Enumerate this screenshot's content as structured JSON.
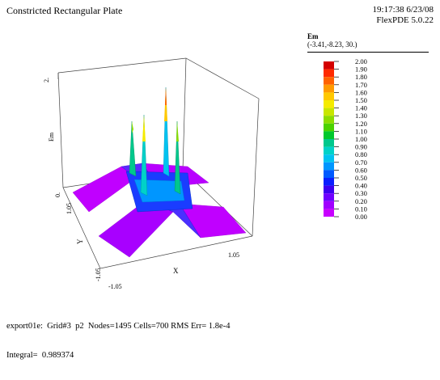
{
  "title": "Constricted Rectangular Plate",
  "timestamp": "19:17:38 6/23/08",
  "version": "FlexPDE 5.0.22",
  "legend": {
    "variable": "Em",
    "viewpoint": "(-3.41,-8.23, 30.)",
    "entries": [
      {
        "value": "2.00",
        "color": "#d40000"
      },
      {
        "value": "1.90",
        "color": "#ff2a00"
      },
      {
        "value": "1.80",
        "color": "#ff6200"
      },
      {
        "value": "1.70",
        "color": "#ff9a00"
      },
      {
        "value": "1.60",
        "color": "#ffc800"
      },
      {
        "value": "1.50",
        "color": "#f5eb00"
      },
      {
        "value": "1.40",
        "color": "#c8e600"
      },
      {
        "value": "1.30",
        "color": "#8cdc00"
      },
      {
        "value": "1.20",
        "color": "#4bd200"
      },
      {
        "value": "1.10",
        "color": "#00c82d"
      },
      {
        "value": "1.00",
        "color": "#00c88c"
      },
      {
        "value": "0.90",
        "color": "#00d2c8"
      },
      {
        "value": "0.80",
        "color": "#00c3f0"
      },
      {
        "value": "0.70",
        "color": "#0096ff"
      },
      {
        "value": "0.60",
        "color": "#005aff"
      },
      {
        "value": "0.50",
        "color": "#0a1eff"
      },
      {
        "value": "0.40",
        "color": "#3c00f0"
      },
      {
        "value": "0.30",
        "color": "#6e00ff"
      },
      {
        "value": "0.20",
        "color": "#a000ff"
      },
      {
        "value": "0.10",
        "color": "#c800ff"
      },
      {
        "value": "0.00",
        "color": "#f000ff"
      }
    ]
  },
  "footer": {
    "line1": "export01e:  Grid#3  p2  Nodes=1495 Cells=700 RMS Err= 1.8e-4",
    "line2": "Integral=  0.989374"
  },
  "chart_data": {
    "type": "surface",
    "zlabel": "Em",
    "xlabel": "X",
    "ylabel": "Y",
    "z_ticks": [
      "0.",
      "2."
    ],
    "x_ticks": [
      "-1.05",
      "1.05"
    ],
    "y_ticks": [
      "-1.05",
      "1.05"
    ],
    "zlim": [
      0,
      2
    ],
    "xlim": [
      -1.05,
      1.05
    ],
    "ylim": [
      -1.05,
      1.05
    ],
    "peaks": [
      {
        "corner": "back-left",
        "z": 1.3
      },
      {
        "corner": "back-right",
        "z": 1.85
      },
      {
        "corner": "front-left",
        "z": 1.5
      },
      {
        "corner": "front-right",
        "z": 1.3
      }
    ]
  }
}
